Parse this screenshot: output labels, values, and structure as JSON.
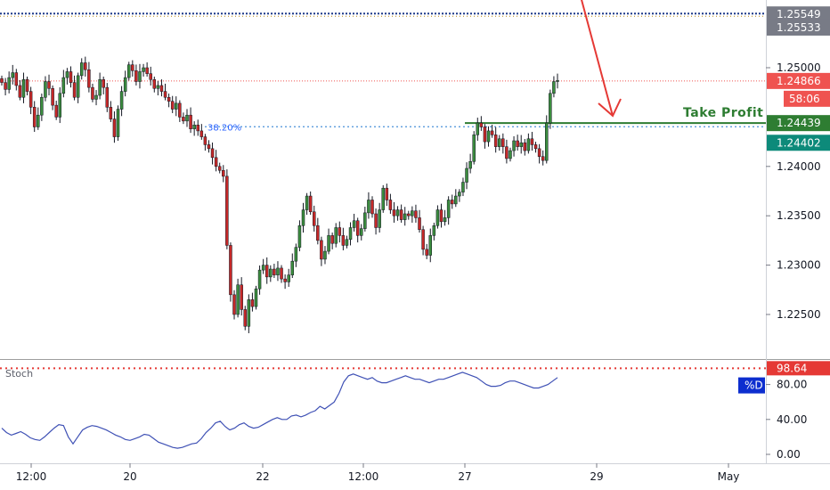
{
  "colors": {
    "up": "#26a69a",
    "down": "#ef5350",
    "candle_body_up": "#3b8c3e",
    "candle_body_down": "#c62828",
    "wick": "#131722",
    "take_profit": "#2e7d32",
    "fib": "#4a90d9",
    "arrow": "#e53935",
    "top_line": "#1e3a8a",
    "stoch_line": "#3f51b5",
    "overbought": "#e53935",
    "tag_gray": "#787b86",
    "tag_red": "#ef5350",
    "tag_green": "#2e7d32",
    "tag_teal": "#0d8a7a",
    "tag_blue": "#0d2ecf"
  },
  "chart_data": [
    {
      "type": "candlestick",
      "title": "",
      "ylim": [
        1.2222,
        1.2565
      ],
      "y_ticks": [
        "1.25000",
        "1.24000",
        "1.23500",
        "1.23000",
        "1.22500"
      ],
      "x_ticks": [
        "12:00",
        "20",
        "22",
        "12:00",
        "27",
        "29",
        "May"
      ],
      "price_levels": [
        {
          "name": "resistance-top",
          "value": 1.25549,
          "label": "1.25549",
          "tag": "tag_gray"
        },
        {
          "name": "resistance-2",
          "value": 1.25533,
          "label": "1.25533",
          "tag": "tag_gray"
        },
        {
          "name": "current-price",
          "value": 1.24866,
          "label": "1.24866",
          "tag": "tag_red"
        },
        {
          "name": "take-profit",
          "value": 1.24439,
          "label": "1.24439",
          "tag": "tag_green"
        },
        {
          "name": "fib-level",
          "value": 1.24402,
          "label": "1.24402",
          "tag": "tag_teal"
        }
      ],
      "countdown": "58:06",
      "fib_label": "38.20%",
      "take_profit_label": "Take Profit",
      "series_close": [
        1.2485,
        1.2478,
        1.249,
        1.2495,
        1.2482,
        1.247,
        1.2488,
        1.2476,
        1.246,
        1.244,
        1.2452,
        1.247,
        1.2486,
        1.2479,
        1.2462,
        1.245,
        1.2474,
        1.249,
        1.2496,
        1.2485,
        1.247,
        1.2492,
        1.2505,
        1.2498,
        1.248,
        1.2468,
        1.2472,
        1.2488,
        1.248,
        1.246,
        1.2448,
        1.243,
        1.2458,
        1.2476,
        1.249,
        1.2503,
        1.2497,
        1.2486,
        1.2496,
        1.25,
        1.2494,
        1.2488,
        1.2479,
        1.2482,
        1.2476,
        1.247,
        1.2466,
        1.2458,
        1.2464,
        1.245,
        1.2446,
        1.2452,
        1.2438,
        1.2442,
        1.2436,
        1.243,
        1.2422,
        1.2418,
        1.2409,
        1.24,
        1.2396,
        1.239,
        1.232,
        1.227,
        1.225,
        1.228,
        1.2255,
        1.2238,
        1.2265,
        1.2258,
        1.2276,
        1.2295,
        1.23,
        1.2288,
        1.2296,
        1.229,
        1.2297,
        1.2286,
        1.2283,
        1.229,
        1.2304,
        1.2318,
        1.234,
        1.2356,
        1.237,
        1.2354,
        1.234,
        1.2325,
        1.2306,
        1.2314,
        1.233,
        1.2322,
        1.2338,
        1.233,
        1.232,
        1.2326,
        1.2338,
        1.2345,
        1.233,
        1.2337,
        1.2353,
        1.2366,
        1.2352,
        1.2338,
        1.2356,
        1.2378,
        1.2366,
        1.2356,
        1.235,
        1.2356,
        1.2346,
        1.2352,
        1.235,
        1.2355,
        1.2348,
        1.2336,
        1.2316,
        1.231,
        1.233,
        1.234,
        1.2356,
        1.2344,
        1.2348,
        1.2366,
        1.2362,
        1.237,
        1.2374,
        1.2384,
        1.2398,
        1.2405,
        1.2432,
        1.2444,
        1.244,
        1.2425,
        1.2436,
        1.2432,
        1.242,
        1.2428,
        1.242,
        1.2408,
        1.2416,
        1.2426,
        1.242,
        1.2424,
        1.2416,
        1.2428,
        1.2422,
        1.2418,
        1.241,
        1.2406,
        1.2444,
        1.2474,
        1.2486,
        1.2487
      ]
    },
    {
      "type": "line",
      "title": "",
      "indicator_label": "Stoch",
      "series_name": "%D",
      "ylim": [
        0,
        100
      ],
      "y_ticks": [
        "80.00",
        "40.00",
        "0.00"
      ],
      "overbought_value": 98.64,
      "overbought_label": "98.64",
      "values": [
        30,
        25,
        22,
        24,
        26,
        23,
        19,
        17,
        16,
        20,
        25,
        30,
        34,
        33,
        20,
        12,
        20,
        28,
        31,
        33,
        32,
        30,
        28,
        25,
        22,
        20,
        17,
        16,
        18,
        20,
        23,
        22,
        18,
        14,
        12,
        10,
        8,
        7,
        8,
        10,
        12,
        13,
        18,
        25,
        30,
        36,
        38,
        32,
        28,
        30,
        34,
        36,
        32,
        30,
        31,
        34,
        37,
        40,
        42,
        40,
        40,
        44,
        45,
        43,
        45,
        48,
        50,
        55,
        52,
        56,
        60,
        70,
        83,
        90,
        92,
        90,
        88,
        86,
        88,
        84,
        82,
        82,
        84,
        86,
        88,
        90,
        88,
        86,
        86,
        84,
        82,
        84,
        86,
        86,
        88,
        90,
        92,
        94,
        92,
        90,
        88,
        84,
        80,
        78,
        78,
        79,
        82,
        84,
        84,
        82,
        80,
        78,
        76,
        76,
        78,
        80,
        84,
        88
      ]
    }
  ]
}
